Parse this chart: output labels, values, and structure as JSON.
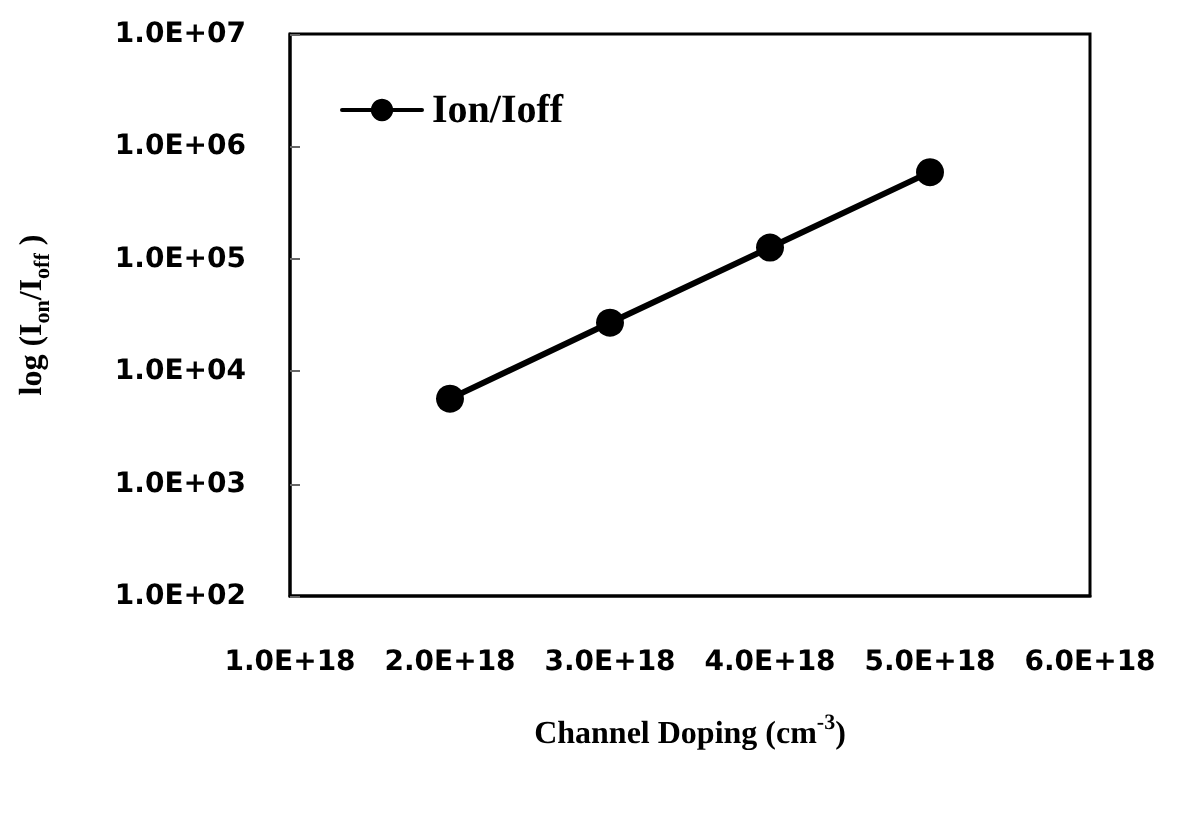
{
  "chart_data": {
    "type": "line",
    "xlabel": "Channel Doping (cm$^{-3}$)",
    "ylabel": "log (I$_{on}$/I$_{off}$ )",
    "x": [
      2e+18,
      3e+18,
      4e+18,
      5e+18
    ],
    "series": [
      {
        "name": "Ion/Ioff",
        "color": "#000000",
        "values": [
          5700,
          27000,
          126000,
          590000
        ]
      }
    ],
    "xlim": [
      1e+18,
      6e+18
    ],
    "xticks": [
      {
        "value": 1e+18,
        "label": "1.0E+18"
      },
      {
        "value": 2e+18,
        "label": "2.0E+18"
      },
      {
        "value": 3e+18,
        "label": "3.0E+18"
      },
      {
        "value": 4e+18,
        "label": "4.0E+18"
      },
      {
        "value": 5e+18,
        "label": "5.0E+18"
      },
      {
        "value": 6e+18,
        "label": "6.0E+18"
      }
    ],
    "ylim": [
      100,
      10000000
    ],
    "yticks": [
      {
        "value": 100,
        "label": "1.0E+02"
      },
      {
        "value": 1000,
        "label": "1.0E+03"
      },
      {
        "value": 10000,
        "label": "1.0E+04"
      },
      {
        "value": 100000,
        "label": "1.0E+05"
      },
      {
        "value": 1000000,
        "label": "1.0E+06"
      },
      {
        "value": 10000000,
        "label": "1.0E+07"
      }
    ],
    "log": "y",
    "grid": false,
    "legend": "top left",
    "marker": "circle",
    "line_style": "solid"
  }
}
